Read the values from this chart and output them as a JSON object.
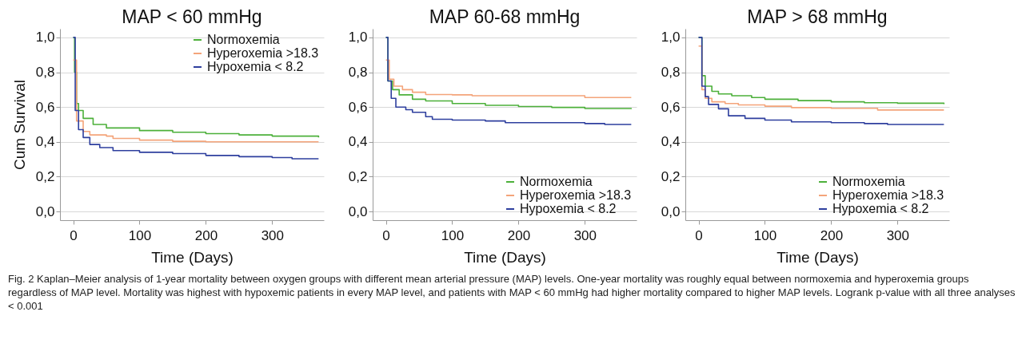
{
  "chart_data": [
    {
      "type": "step",
      "title": "MAP < 60 mmHg",
      "xlabel": "Time (Days)",
      "ylabel": "Cum Survival",
      "xlim": [
        -20,
        378
      ],
      "ylim": [
        -0.05,
        1.05
      ],
      "xticks": [
        0,
        100,
        200,
        300
      ],
      "yticks": [
        {
          "value": 0,
          "label": "0,0"
        },
        {
          "value": 0.2,
          "label": "0,2"
        },
        {
          "value": 0.4,
          "label": "0,4"
        },
        {
          "value": 0.6,
          "label": "0,6"
        },
        {
          "value": 0.8,
          "label": "0,8"
        },
        {
          "value": 1,
          "label": "1,0"
        }
      ],
      "grid": "y",
      "legend": "top right",
      "annotations": [
        "Fig. 2 Kaplan–Meier analysis of 1-year mortality between oxygen groups with different mean arterial pressure (MAP) levels. One-year mortality was roughly equal between normoxemia and hyperoxemia groups regardless of MAP level. Mortality was highest with hypoxemic patients in every MAP level, and patients with MAP < 60 mmHg had higher mortality compared to higher MAP levels. Logrank p-value with all three analyses < 0.001"
      ],
      "series": [
        {
          "name": "Normoxemia",
          "color": "#4cb03a",
          "x": [
            0,
            2,
            5,
            8,
            15,
            30,
            50,
            100,
            150,
            200,
            250,
            300,
            370
          ],
          "values": [
            1.0,
            0.8,
            0.62,
            0.58,
            0.535,
            0.5,
            0.48,
            0.465,
            0.455,
            0.447,
            0.44,
            0.433,
            0.425
          ]
        },
        {
          "name": "Hyperoxemia >18.3",
          "color": "#f4a47a",
          "x": [
            0,
            5,
            15,
            25,
            50,
            60,
            100,
            150,
            200,
            370
          ],
          "values": [
            0.87,
            0.52,
            0.46,
            0.44,
            0.433,
            0.42,
            0.41,
            0.403,
            0.4,
            0.4
          ]
        },
        {
          "name": "Hypoxemia < 8.2",
          "color": "#2e3f9e",
          "x": [
            0,
            3,
            8,
            15,
            25,
            40,
            60,
            100,
            150,
            200,
            250,
            300,
            330,
            370
          ],
          "values": [
            1.0,
            0.58,
            0.47,
            0.425,
            0.385,
            0.367,
            0.35,
            0.34,
            0.333,
            0.322,
            0.315,
            0.31,
            0.303,
            0.303
          ]
        }
      ]
    },
    {
      "type": "step",
      "title": "MAP 60-68 mmHg",
      "xlabel": "Time (Days)",
      "xlim": [
        -20,
        378
      ],
      "ylim": [
        -0.05,
        1.05
      ],
      "xticks": [
        0,
        100,
        200,
        300
      ],
      "yticks": [
        {
          "value": 0,
          "label": "0,0"
        },
        {
          "value": 0.2,
          "label": "0,2"
        },
        {
          "value": 0.4,
          "label": "0,4"
        },
        {
          "value": 0.6,
          "label": "0,6"
        },
        {
          "value": 0.8,
          "label": "0,8"
        },
        {
          "value": 1,
          "label": "1,0"
        }
      ],
      "grid": "y",
      "legend": "bottom right",
      "series": [
        {
          "name": "Normoxemia",
          "color": "#4cb03a",
          "x": [
            0,
            3,
            10,
            20,
            40,
            60,
            100,
            150,
            200,
            250,
            300,
            370
          ],
          "values": [
            1.0,
            0.75,
            0.7,
            0.67,
            0.645,
            0.635,
            0.62,
            0.61,
            0.603,
            0.598,
            0.592,
            0.588
          ]
        },
        {
          "name": "Hyperoxemia >18.3",
          "color": "#f4a47a",
          "x": [
            0,
            5,
            12,
            25,
            40,
            60,
            100,
            130,
            250,
            300,
            370
          ],
          "values": [
            0.87,
            0.76,
            0.72,
            0.7,
            0.685,
            0.672,
            0.67,
            0.665,
            0.665,
            0.655,
            0.655
          ]
        },
        {
          "name": "Hypoxemia < 8.2",
          "color": "#2e3f9e",
          "x": [
            0,
            3,
            8,
            15,
            30,
            40,
            60,
            70,
            100,
            150,
            180,
            300,
            330,
            370
          ],
          "values": [
            1.0,
            0.75,
            0.65,
            0.6,
            0.585,
            0.57,
            0.545,
            0.53,
            0.525,
            0.52,
            0.51,
            0.505,
            0.5,
            0.5
          ]
        }
      ]
    },
    {
      "type": "step",
      "title": "MAP > 68 mmHg",
      "xlabel": "Time (Days)",
      "xlim": [
        -20,
        378
      ],
      "ylim": [
        -0.05,
        1.05
      ],
      "xticks": [
        0,
        100,
        200,
        300
      ],
      "yticks": [
        {
          "value": 0,
          "label": "0,0"
        },
        {
          "value": 0.2,
          "label": "0,2"
        },
        {
          "value": 0.4,
          "label": "0,4"
        },
        {
          "value": 0.6,
          "label": "0,6"
        },
        {
          "value": 0.8,
          "label": "0,8"
        },
        {
          "value": 1,
          "label": "1,0"
        }
      ],
      "grid": "y",
      "legend": "bottom right",
      "series": [
        {
          "name": "Normoxemia",
          "color": "#4cb03a",
          "x": [
            0,
            5,
            10,
            20,
            30,
            50,
            80,
            100,
            150,
            200,
            250,
            300,
            370
          ],
          "values": [
            1.0,
            0.78,
            0.72,
            0.69,
            0.675,
            0.665,
            0.655,
            0.645,
            0.637,
            0.63,
            0.625,
            0.622,
            0.617
          ]
        },
        {
          "name": "Hyperoxemia >18.3",
          "color": "#f4a47a",
          "x": [
            0,
            5,
            10,
            20,
            40,
            60,
            100,
            140,
            200,
            270,
            370
          ],
          "values": [
            0.95,
            0.7,
            0.65,
            0.63,
            0.62,
            0.612,
            0.605,
            0.597,
            0.593,
            0.583,
            0.583
          ]
        },
        {
          "name": "Hypoxemia < 8.2",
          "color": "#2e3f9e",
          "x": [
            0,
            5,
            10,
            15,
            30,
            45,
            70,
            100,
            140,
            200,
            250,
            285,
            370
          ],
          "values": [
            1.0,
            0.72,
            0.66,
            0.615,
            0.59,
            0.55,
            0.535,
            0.525,
            0.515,
            0.51,
            0.505,
            0.5,
            0.5
          ]
        }
      ]
    }
  ]
}
